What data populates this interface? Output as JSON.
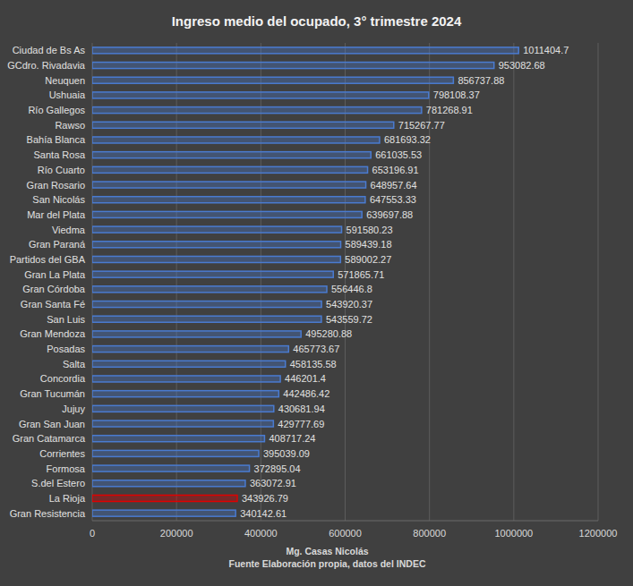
{
  "chart_data": {
    "type": "bar",
    "orientation": "horizontal",
    "title": "Ingreso medio del ocupado, 3° trimestre 2024",
    "annotations": [
      "Mg. Casas Nicolás",
      "Fuente Elaboración  propia, datos del INDEC"
    ],
    "categories": [
      "Ciudad de Bs As",
      "GCdro. Rivadavia",
      "Neuquen",
      "Ushuaia",
      "Río Gallegos",
      "Rawso",
      "Bahía Blanca",
      "Santa Rosa",
      "Río Cuarto",
      "Gran Rosario",
      "San Nicolás",
      "Mar del Plata",
      "Viedma",
      "Gran Paraná",
      "Partidos del GBA",
      "Gran La Plata",
      "Gran Córdoba",
      "Gran Santa Fé",
      "San Luis",
      "Gran Mendoza",
      "Posadas",
      "Salta",
      "Concordia",
      "Gran Tucumán",
      "Jujuy",
      "Gran San Juan",
      "Gran Catamarca",
      "Corrientes",
      "Formosa",
      "S.del Estero",
      "La Rioja",
      "Gran Resistencia"
    ],
    "values": [
      1011404.7,
      953082.68,
      856737.88,
      798108.37,
      781268.91,
      715267.77,
      681693.32,
      661035.53,
      653196.91,
      648957.64,
      647553.33,
      639697.88,
      591580.23,
      589439.18,
      589002.27,
      571865.71,
      556446.8,
      543920.37,
      543559.72,
      495280.88,
      465773.67,
      458135.58,
      446201.4,
      442486.42,
      430681.94,
      429777.69,
      408717.24,
      395039.09,
      372895.04,
      363072.91,
      343926.79,
      340142.61
    ],
    "colors": [
      "#4a7bd0",
      "#4a7bd0",
      "#4a7bd0",
      "#4a7bd0",
      "#4a7bd0",
      "#4a7bd0",
      "#4a7bd0",
      "#4a7bd0",
      "#4a7bd0",
      "#4a7bd0",
      "#4a7bd0",
      "#4a7bd0",
      "#4a7bd0",
      "#4a7bd0",
      "#4a7bd0",
      "#4a7bd0",
      "#4a7bd0",
      "#4a7bd0",
      "#4a7bd0",
      "#4a7bd0",
      "#4a7bd0",
      "#4a7bd0",
      "#4a7bd0",
      "#4a7bd0",
      "#4a7bd0",
      "#4a7bd0",
      "#4a7bd0",
      "#4a7bd0",
      "#4a7bd0",
      "#4a7bd0",
      "#e00000",
      "#4a7bd0"
    ],
    "xlim": [
      0,
      1200000
    ],
    "xticks": [
      0,
      200000,
      400000,
      600000,
      800000,
      1000000,
      1200000
    ],
    "grid": true,
    "data_labels": true
  }
}
